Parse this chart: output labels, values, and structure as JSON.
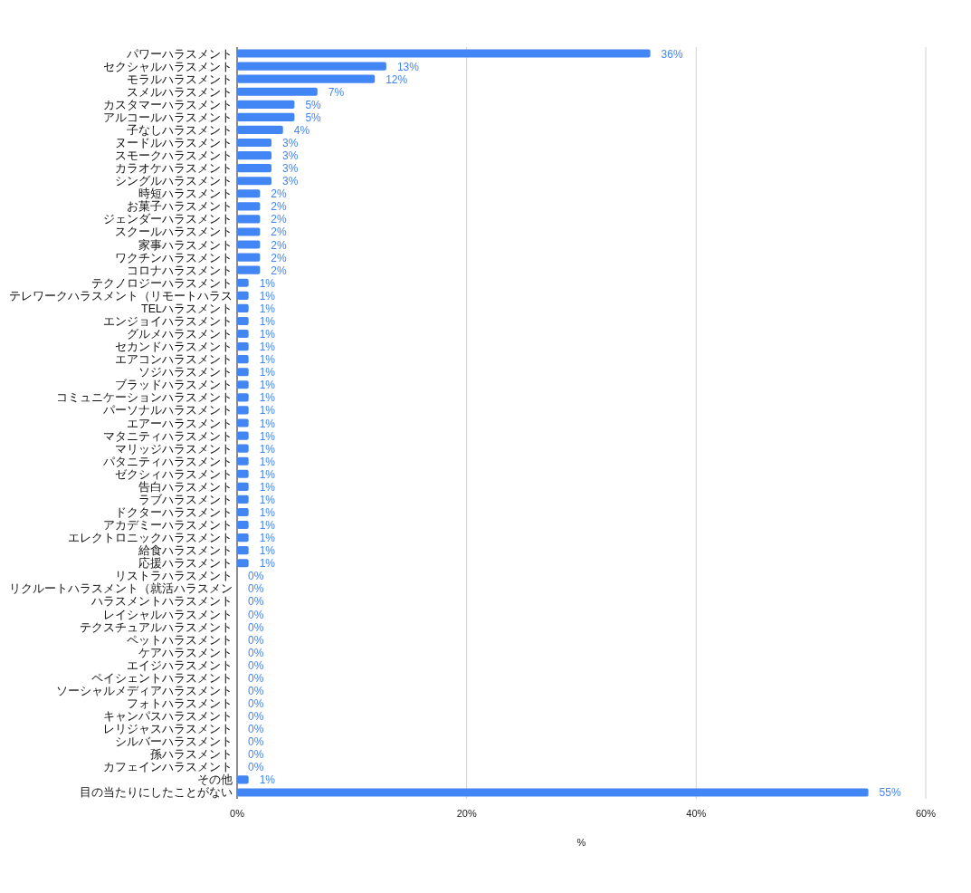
{
  "chart_data": {
    "type": "bar",
    "orientation": "horizontal",
    "xlabel": "%",
    "categories": [
      "パワーハラスメント",
      "セクシャルハラスメント",
      "モラルハラスメント",
      "スメルハラスメント",
      "カスタマーハラスメント",
      "アルコールハラスメント",
      "子なしハラスメント",
      "ヌードルハラスメント",
      "スモークハラスメント",
      "カラオケハラスメント",
      "シングルハラスメント",
      "時短ハラスメント",
      "お菓子ハラスメント",
      "ジェンダーハラスメント",
      "スクールハラスメント",
      "家事ハラスメント",
      "ワクチンハラスメント",
      "コロナハラスメント",
      "テクノロジーハラスメント",
      "テレワークハラスメント（リモートハラス",
      "TELハラスメント",
      "エンジョイハラスメント",
      "グルメハラスメント",
      "セカンドハラスメント",
      "エアコンハラスメント",
      "ソジハラスメント",
      "ブラッドハラスメント",
      "コミュニケーションハラスメント",
      "パーソナルハラスメント",
      "エアーハラスメント",
      "マタニティハラスメント",
      "マリッジハラスメント",
      "パタニティハラスメント",
      "ゼクシィハラスメント",
      "告白ハラスメント",
      "ラブハラスメント",
      "ドクターハラスメント",
      "アカデミーハラスメント",
      "エレクトロニックハラスメント",
      "給食ハラスメント",
      "応援ハラスメント",
      "リストラハラスメント",
      "リクルートハラスメント（就活ハラスメン",
      "ハラスメントハラスメント",
      "レイシャルハラスメント",
      "テクスチュアルハラスメント",
      "ペットハラスメント",
      "ケアハラスメント",
      "エイジハラスメント",
      "ペイシェントハラスメント",
      "ソーシャルメディアハラスメント",
      "フォトハラスメント",
      "キャンパスハラスメント",
      "レリジャスハラスメント",
      "シルバーハラスメント",
      "孫ハラスメント",
      "カフェインハラスメント",
      "その他",
      "目の当たりにしたことがない"
    ],
    "values": [
      36,
      13,
      12,
      7,
      5,
      5,
      4,
      3,
      3,
      3,
      3,
      2,
      2,
      2,
      2,
      2,
      2,
      2,
      1,
      1,
      1,
      1,
      1,
      1,
      1,
      1,
      1,
      1,
      1,
      1,
      1,
      1,
      1,
      1,
      1,
      1,
      1,
      1,
      1,
      1,
      1,
      0,
      0,
      0,
      0,
      0,
      0,
      0,
      0,
      0,
      0,
      0,
      0,
      0,
      0,
      0,
      0,
      1,
      55
    ],
    "value_labels": [
      "36%",
      "13%",
      "12%",
      "7%",
      "5%",
      "5%",
      "4%",
      "3%",
      "3%",
      "3%",
      "3%",
      "2%",
      "2%",
      "2%",
      "2%",
      "2%",
      "2%",
      "2%",
      "1%",
      "1%",
      "1%",
      "1%",
      "1%",
      "1%",
      "1%",
      "1%",
      "1%",
      "1%",
      "1%",
      "1%",
      "1%",
      "1%",
      "1%",
      "1%",
      "1%",
      "1%",
      "1%",
      "1%",
      "1%",
      "1%",
      "1%",
      "0%",
      "0%",
      "0%",
      "0%",
      "0%",
      "0%",
      "0%",
      "0%",
      "0%",
      "0%",
      "0%",
      "0%",
      "0%",
      "0%",
      "0%",
      "0%",
      "1%",
      "55%"
    ],
    "color": "#4285f4",
    "xlim": [
      0,
      60
    ],
    "xticks": [
      {
        "value": 0,
        "label": "0%"
      },
      {
        "value": 20,
        "label": "20%"
      },
      {
        "value": 40,
        "label": "40%"
      },
      {
        "value": 60,
        "label": "60%"
      }
    ],
    "grid": "x"
  }
}
